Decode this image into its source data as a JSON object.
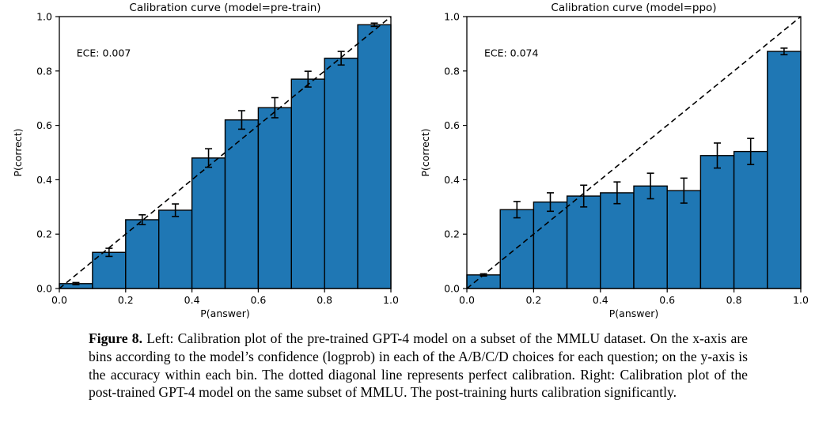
{
  "chart_data": [
    {
      "type": "bar",
      "title": "Calibration curve (model=pre-train)",
      "annotation": "ECE: 0.007",
      "xlabel": "P(answer)",
      "ylabel": "P(correct)",
      "xlim": [
        0.0,
        1.0
      ],
      "ylim": [
        0.0,
        1.0
      ],
      "xticks": [
        "0.0",
        "0.2",
        "0.4",
        "0.6",
        "0.8",
        "1.0"
      ],
      "yticks": [
        "0.0",
        "0.2",
        "0.4",
        "0.6",
        "0.8",
        "1.0"
      ],
      "grid": false,
      "legend": "none",
      "bin_width": 0.1,
      "bin_centers": [
        0.05,
        0.15,
        0.25,
        0.35,
        0.45,
        0.55,
        0.65,
        0.75,
        0.85,
        0.95
      ],
      "values": [
        0.018,
        0.133,
        0.253,
        0.288,
        0.48,
        0.62,
        0.665,
        0.77,
        0.847,
        0.97
      ],
      "errors": [
        0.004,
        0.015,
        0.018,
        0.023,
        0.034,
        0.034,
        0.037,
        0.029,
        0.025,
        0.006
      ],
      "diagonal_line": "perfect calibration (0,0)-(1,1), dashed black",
      "bar_color": "#1f77b4",
      "edge_color": "#000000"
    },
    {
      "type": "bar",
      "title": "Calibration curve (model=ppo)",
      "annotation": "ECE: 0.074",
      "xlabel": "P(answer)",
      "ylabel": "P(correct)",
      "xlim": [
        0.0,
        1.0
      ],
      "ylim": [
        0.0,
        1.0
      ],
      "xticks": [
        "0.0",
        "0.2",
        "0.4",
        "0.6",
        "0.8",
        "1.0"
      ],
      "yticks": [
        "0.0",
        "0.2",
        "0.4",
        "0.6",
        "0.8",
        "1.0"
      ],
      "grid": false,
      "legend": "none",
      "bin_width": 0.1,
      "bin_centers": [
        0.05,
        0.15,
        0.25,
        0.35,
        0.45,
        0.55,
        0.65,
        0.75,
        0.85,
        0.95
      ],
      "values": [
        0.05,
        0.29,
        0.318,
        0.34,
        0.352,
        0.377,
        0.36,
        0.489,
        0.504,
        0.872
      ],
      "errors": [
        0.004,
        0.03,
        0.034,
        0.04,
        0.04,
        0.047,
        0.046,
        0.046,
        0.048,
        0.012
      ],
      "diagonal_line": "perfect calibration (0,0)-(1,1), dashed black",
      "bar_color": "#1f77b4",
      "edge_color": "#000000"
    }
  ],
  "caption": {
    "label": "Figure 8.",
    "text": "Left: Calibration plot of the pre-trained GPT-4 model on a subset of the MMLU dataset. On the x-axis are bins according to the model’s confidence (logprob) in each of the A/B/C/D choices for each question; on the y-axis is the accuracy within each bin. The dotted diagonal line represents perfect calibration. Right: Calibration plot of the post-trained GPT-4 model on the same subset of MMLU. The post-training hurts calibration significantly."
  }
}
